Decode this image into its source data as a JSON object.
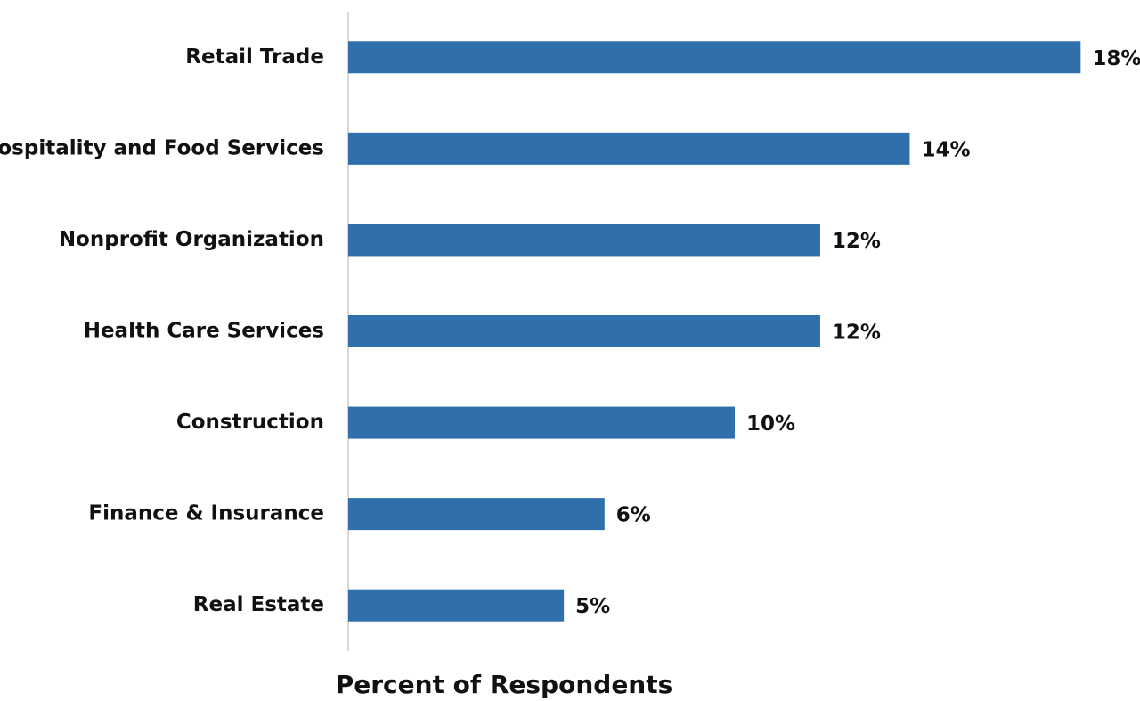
{
  "chart_data": {
    "type": "barh",
    "xlabel": "Percent of Respondents",
    "categories": [
      "Retail Trade",
      "Hospitality and Food Services",
      "Nonprofit Organization",
      "Health Care Services",
      "Construction",
      "Finance & Insurance",
      "Real Estate"
    ],
    "values": [
      18.0,
      13.8,
      11.6,
      11.6,
      9.5,
      6.3,
      5.3
    ],
    "value_labels": [
      "18%",
      "14%",
      "12%",
      "12%",
      "10%",
      "6%",
      "5%"
    ],
    "color": "#2e6fac",
    "xlim": [
      0,
      19
    ]
  }
}
